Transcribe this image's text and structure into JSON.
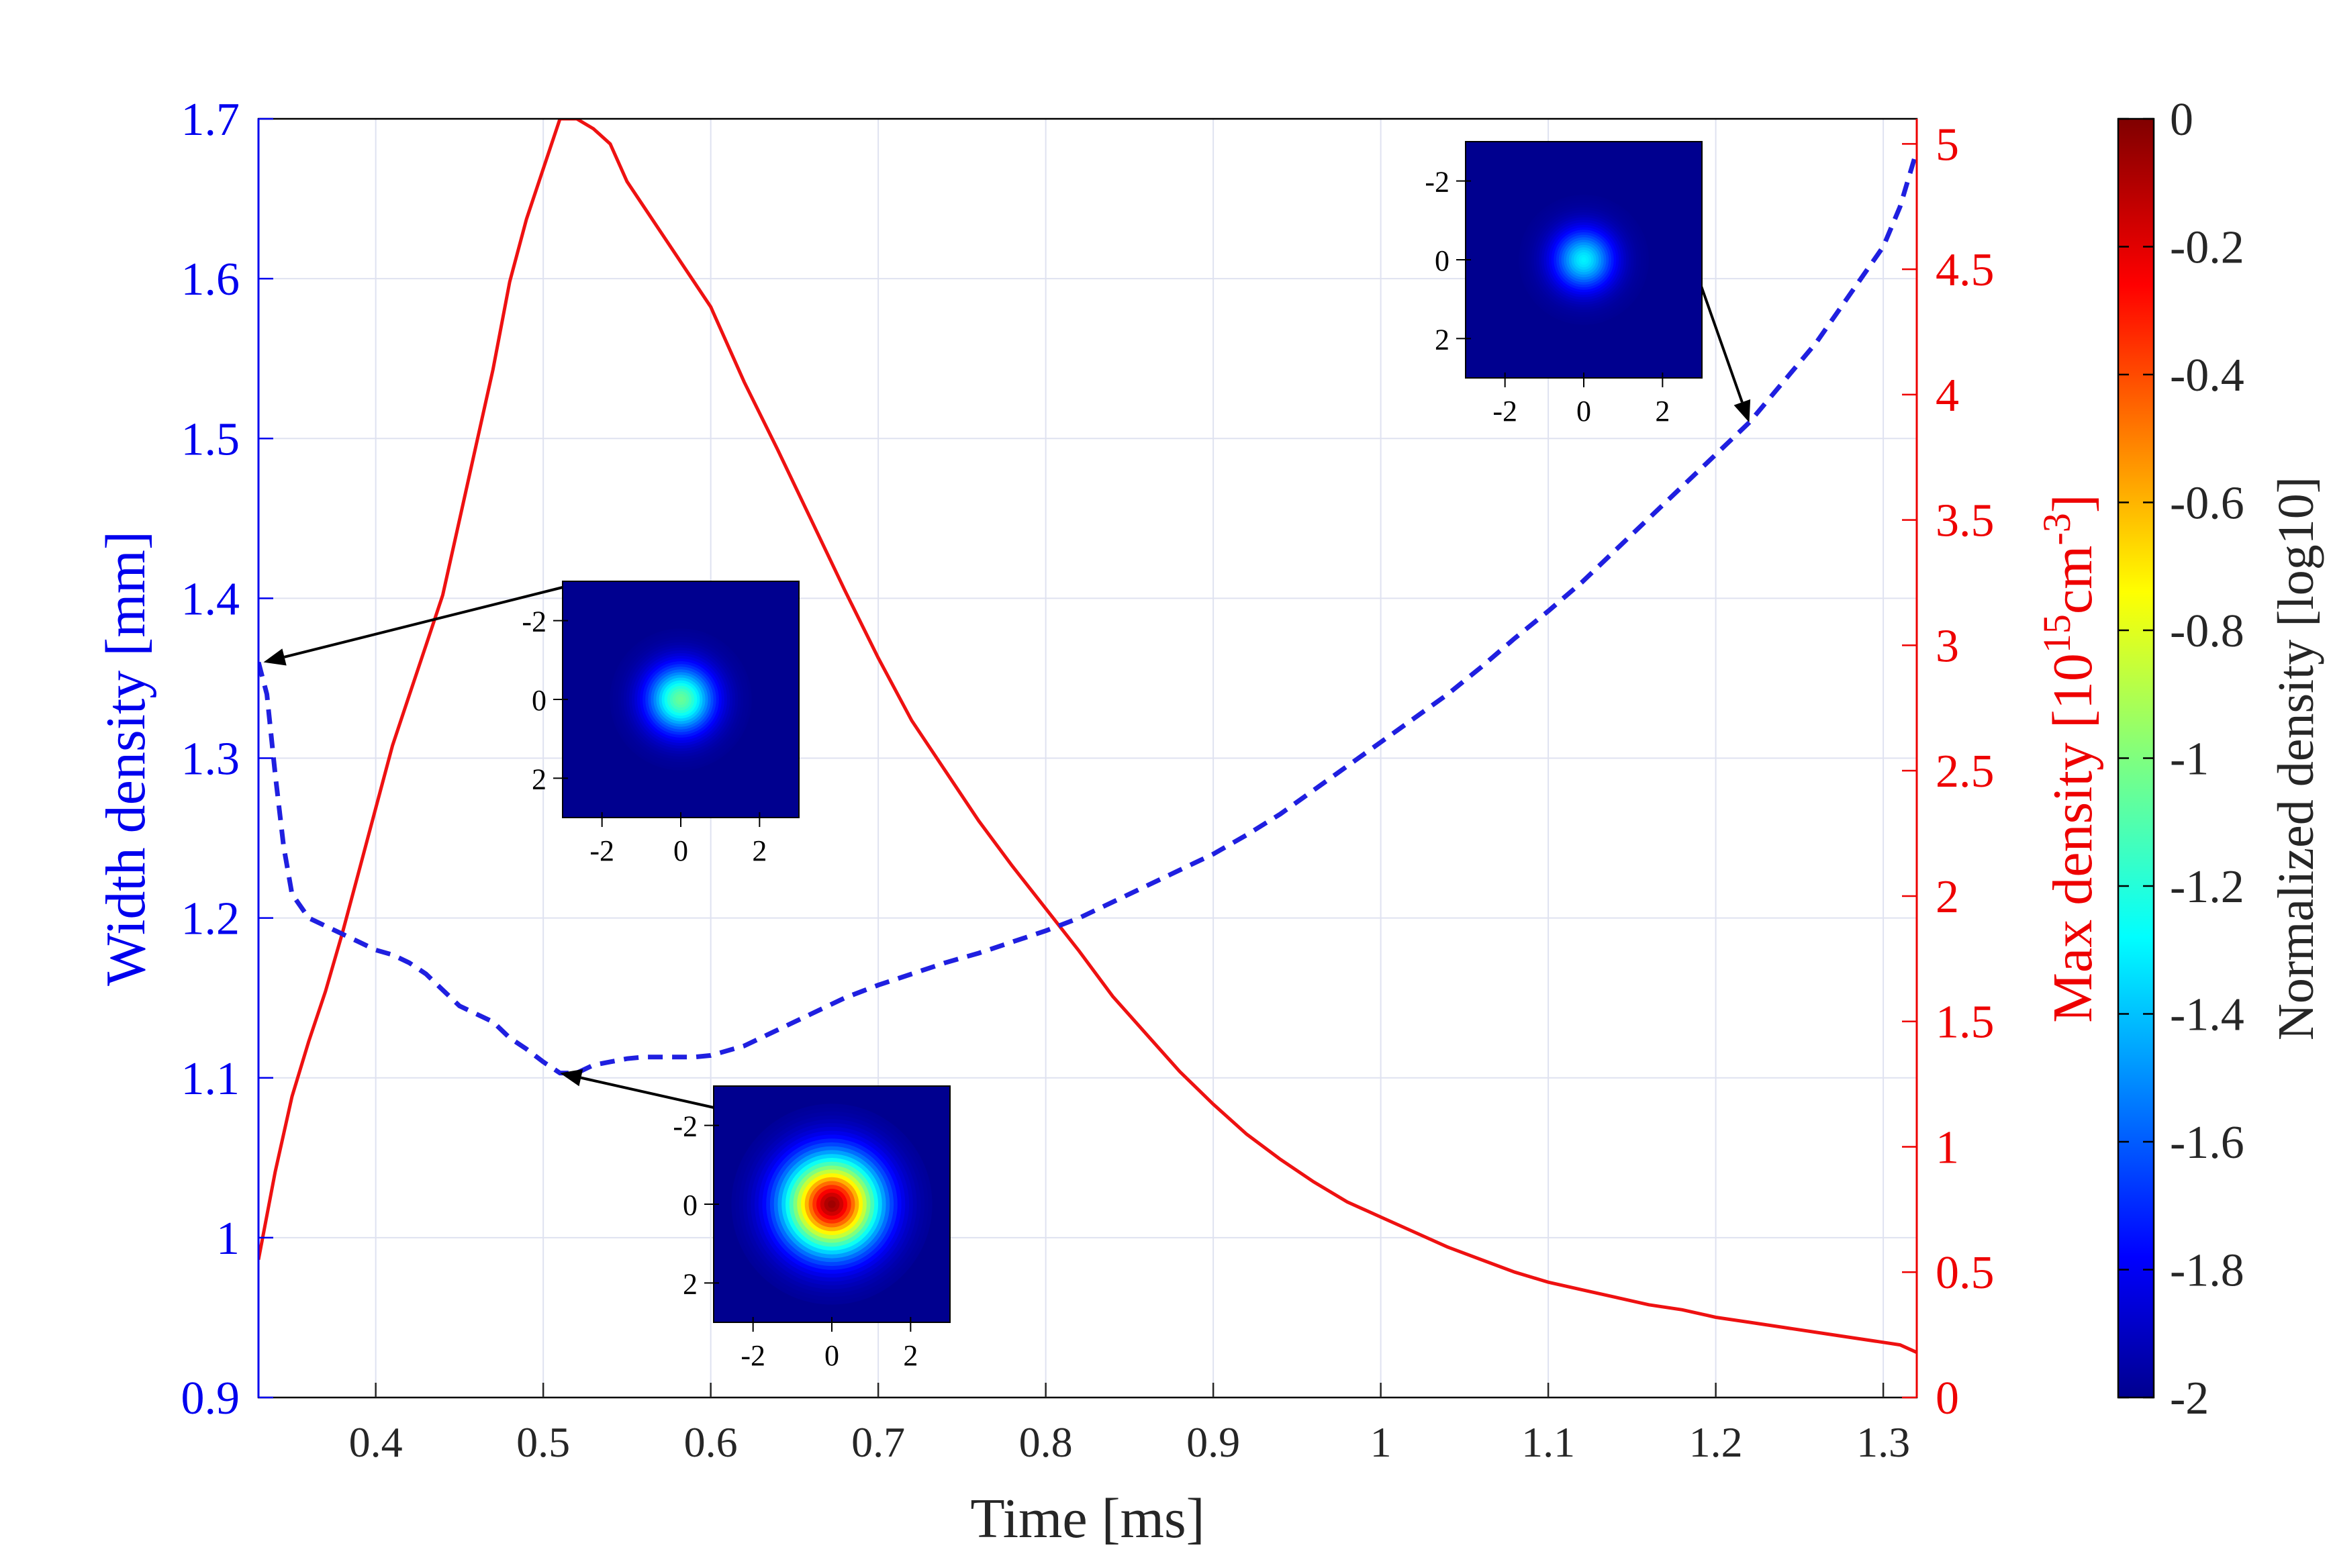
{
  "colors": {
    "left_axis": "#0000ee",
    "right_axis": "#ee0000",
    "width_series": "#1f1fe0",
    "max_series": "#ee1111",
    "grid": "#dfe2f0",
    "arrow": "#000000",
    "inset_background": "#00008f"
  },
  "chart_data": {
    "type": "line",
    "xlabel": "Time [ms]",
    "xlim": [
      0.33,
      1.32
    ],
    "xticks": [
      "0.4",
      "0.5",
      "0.6",
      "0.7",
      "0.8",
      "0.9",
      "1",
      "1.1",
      "1.2",
      "1.3"
    ],
    "xtick_values": [
      0.4,
      0.5,
      0.6,
      0.7,
      0.8,
      0.9,
      1.0,
      1.1,
      1.2,
      1.3
    ],
    "y_left": {
      "label": "Width density [mm]",
      "lim": [
        0.9,
        1.7
      ],
      "ticks": [
        "0.9",
        "1",
        "1.1",
        "1.2",
        "1.3",
        "1.4",
        "1.5",
        "1.6",
        "1.7"
      ],
      "tick_values": [
        0.9,
        1.0,
        1.1,
        1.2,
        1.3,
        1.4,
        1.5,
        1.6,
        1.7
      ]
    },
    "y_right": {
      "label_prefix": "Max density [10",
      "label_sup1": "15",
      "label_mid": "cm",
      "label_sup2": "-3",
      "label_suffix": "]",
      "lim": [
        0,
        5.1
      ],
      "ticks": [
        "0",
        "0.5",
        "1",
        "1.5",
        "2",
        "2.5",
        "3",
        "3.5",
        "4",
        "4.5",
        "5"
      ],
      "tick_values": [
        0,
        0.5,
        1.0,
        1.5,
        2.0,
        2.5,
        3.0,
        3.5,
        4.0,
        4.5,
        5.0
      ]
    },
    "grid": true,
    "series": [
      {
        "name": "Width density",
        "axis": "left",
        "style": "dashed",
        "x": [
          0.33,
          0.335,
          0.34,
          0.345,
          0.35,
          0.36,
          0.37,
          0.38,
          0.39,
          0.4,
          0.41,
          0.42,
          0.43,
          0.44,
          0.45,
          0.46,
          0.47,
          0.48,
          0.49,
          0.5,
          0.51,
          0.52,
          0.53,
          0.54,
          0.55,
          0.56,
          0.57,
          0.58,
          0.59,
          0.6,
          0.62,
          0.64,
          0.66,
          0.68,
          0.7,
          0.72,
          0.74,
          0.76,
          0.78,
          0.8,
          0.82,
          0.84,
          0.86,
          0.88,
          0.9,
          0.92,
          0.94,
          0.96,
          0.98,
          1.0,
          1.02,
          1.04,
          1.06,
          1.08,
          1.1,
          1.12,
          1.14,
          1.16,
          1.18,
          1.2,
          1.22,
          1.24,
          1.26,
          1.28,
          1.3,
          1.31,
          1.32
        ],
        "values": [
          1.36,
          1.34,
          1.29,
          1.245,
          1.215,
          1.2,
          1.195,
          1.19,
          1.185,
          1.18,
          1.177,
          1.172,
          1.165,
          1.155,
          1.145,
          1.14,
          1.135,
          1.125,
          1.118,
          1.11,
          1.103,
          1.103,
          1.108,
          1.11,
          1.112,
          1.113,
          1.113,
          1.113,
          1.113,
          1.114,
          1.12,
          1.13,
          1.14,
          1.15,
          1.158,
          1.165,
          1.172,
          1.178,
          1.185,
          1.192,
          1.2,
          1.21,
          1.22,
          1.23,
          1.24,
          1.252,
          1.265,
          1.28,
          1.295,
          1.31,
          1.325,
          1.34,
          1.357,
          1.375,
          1.392,
          1.41,
          1.43,
          1.45,
          1.47,
          1.49,
          1.51,
          1.535,
          1.56,
          1.59,
          1.62,
          1.645,
          1.68
        ]
      },
      {
        "name": "Max density",
        "axis": "right",
        "style": "solid",
        "x": [
          0.33,
          0.34,
          0.35,
          0.36,
          0.37,
          0.38,
          0.39,
          0.4,
          0.41,
          0.42,
          0.43,
          0.44,
          0.45,
          0.46,
          0.47,
          0.48,
          0.49,
          0.5,
          0.51,
          0.52,
          0.53,
          0.54,
          0.55,
          0.56,
          0.57,
          0.58,
          0.59,
          0.6,
          0.62,
          0.64,
          0.66,
          0.68,
          0.7,
          0.72,
          0.74,
          0.76,
          0.78,
          0.8,
          0.82,
          0.84,
          0.86,
          0.88,
          0.9,
          0.92,
          0.94,
          0.96,
          0.98,
          1.0,
          1.02,
          1.04,
          1.06,
          1.08,
          1.1,
          1.12,
          1.14,
          1.16,
          1.18,
          1.2,
          1.22,
          1.24,
          1.26,
          1.28,
          1.3,
          1.31,
          1.32
        ],
        "values": [
          0.55,
          0.9,
          1.2,
          1.42,
          1.62,
          1.85,
          2.1,
          2.35,
          2.6,
          2.8,
          3.0,
          3.2,
          3.5,
          3.8,
          4.1,
          4.45,
          4.7,
          4.9,
          5.1,
          5.1,
          5.06,
          5.0,
          4.85,
          4.75,
          4.65,
          4.55,
          4.45,
          4.35,
          4.05,
          3.78,
          3.5,
          3.22,
          2.95,
          2.7,
          2.5,
          2.3,
          2.12,
          1.95,
          1.78,
          1.6,
          1.45,
          1.3,
          1.17,
          1.05,
          0.95,
          0.86,
          0.78,
          0.72,
          0.66,
          0.6,
          0.55,
          0.5,
          0.46,
          0.43,
          0.4,
          0.37,
          0.35,
          0.32,
          0.3,
          0.28,
          0.26,
          0.24,
          0.22,
          0.21,
          0.18
        ]
      }
    ],
    "colorbar": {
      "label": "Normalized density [log10]",
      "lim": [
        -2,
        0
      ],
      "ticks": [
        "0",
        "-0.2",
        "-0.4",
        "-0.6",
        "-0.8",
        "-1",
        "-1.2",
        "-1.4",
        "-1.6",
        "-1.8",
        "-2"
      ],
      "tick_values": [
        0,
        -0.2,
        -0.4,
        -0.6,
        -0.8,
        -1.0,
        -1.2,
        -1.4,
        -1.6,
        -1.8,
        -2.0
      ],
      "colormap": "jet"
    },
    "insets": [
      {
        "name": "inset-upper-right",
        "ticks_x": [
          "-2",
          "0",
          "2"
        ],
        "ticks_y": [
          "-2",
          "0",
          "2"
        ],
        "spot_peak_level": -1.3,
        "spot_sigma": 0.55,
        "arrow_to": {
          "x": 1.22,
          "y_left": 1.51
        }
      },
      {
        "name": "inset-left",
        "ticks_x": [
          "-2",
          "0",
          "2"
        ],
        "ticks_y": [
          "-2",
          "0",
          "2"
        ],
        "spot_peak_level": -1.05,
        "spot_sigma": 0.6,
        "arrow_to": {
          "x": 0.333,
          "y_left": 1.36
        }
      },
      {
        "name": "inset-bottom",
        "ticks_x": [
          "-2",
          "0",
          "2"
        ],
        "ticks_y": [
          "-2",
          "0",
          "2"
        ],
        "spot_peak_level": -0.05,
        "spot_sigma": 0.85,
        "arrow_to": {
          "x": 0.51,
          "y_left": 1.103
        }
      }
    ]
  }
}
